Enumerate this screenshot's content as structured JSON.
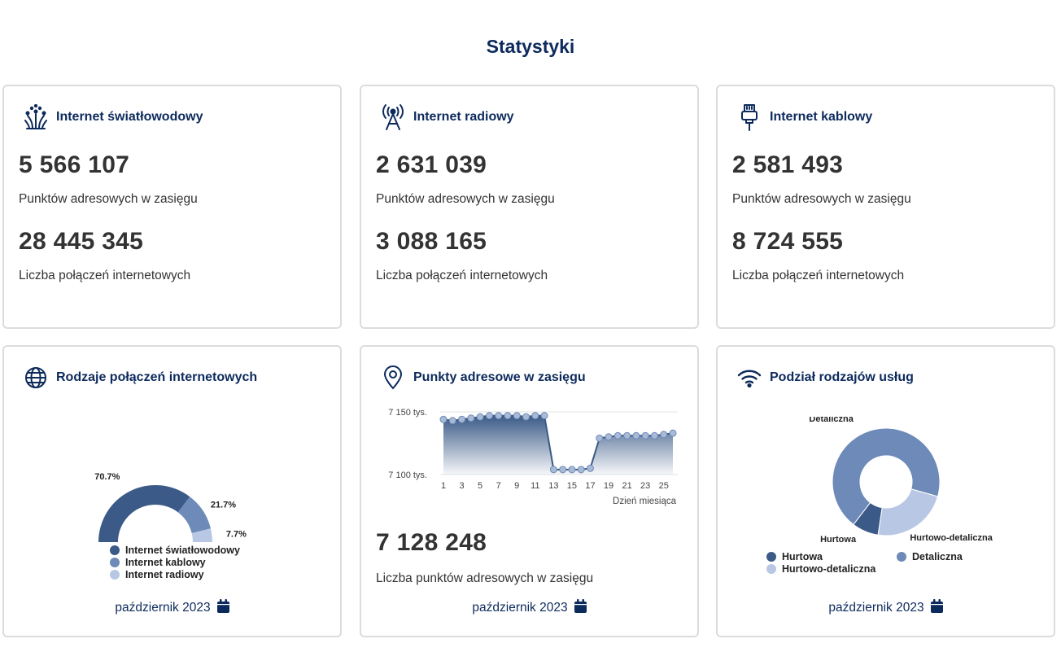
{
  "page_title": "Statystyki",
  "colors": {
    "accent": "#0d2a5c",
    "dark_series": "#3b5a87",
    "mid_series": "#6d8ab8",
    "light_series": "#b8c8e4"
  },
  "cards": {
    "fiber": {
      "icon": "fiber-optic-icon",
      "title": "Internet światłowodowy",
      "address_points": "5 566 107",
      "address_points_label": "Punktów adresowych w zasięgu",
      "connections": "28 445 345",
      "connections_label": "Liczba połączeń internetowych"
    },
    "radio": {
      "icon": "radio-tower-icon",
      "title": "Internet radiowy",
      "address_points": "2 631 039",
      "address_points_label": "Punktów adresowych w zasięgu",
      "connections": "3 088 165",
      "connections_label": "Liczba połączeń internetowych"
    },
    "cable": {
      "icon": "ethernet-cable-icon",
      "title": "Internet kablowy",
      "address_points": "2 581 493",
      "address_points_label": "Punktów adresowych w zasięgu",
      "connections": "8 724 555",
      "connections_label": "Liczba połączeń internetowych"
    },
    "connection_types": {
      "icon": "globe-icon",
      "title": "Rodzaje połączeń internetowych",
      "date": "październik 2023"
    },
    "address_points": {
      "icon": "map-pin-icon",
      "title": "Punkty adresowe w zasięgu",
      "total": "7 128 248",
      "total_label": "Liczba punktów adresowych w zasięgu",
      "date": "październik 2023"
    },
    "service_types": {
      "icon": "wifi-icon",
      "title": "Podział rodzajów usług",
      "date": "październik 2023"
    }
  },
  "chart_data": [
    {
      "type": "pie",
      "variant": "semi-donut",
      "labels": [
        "Internet światłowodowy",
        "Internet kablowy",
        "Internet radiowy"
      ],
      "values": [
        70.7,
        21.7,
        7.7
      ],
      "value_labels": [
        "70.7%",
        "21.7%",
        "7.7%"
      ],
      "colors": [
        "#3b5a87",
        "#6d8ab8",
        "#b8c8e4"
      ],
      "legend": "bottom"
    },
    {
      "type": "area",
      "x": [
        1,
        2,
        3,
        4,
        5,
        6,
        7,
        8,
        9,
        10,
        11,
        12,
        13,
        14,
        15,
        16,
        17,
        18,
        19,
        20,
        21,
        22,
        23,
        24,
        25,
        26
      ],
      "y": [
        7144,
        7143,
        7144,
        7145,
        7146,
        7147,
        7147,
        7147,
        7147,
        7146,
        7147,
        7147,
        7104,
        7104,
        7104,
        7104,
        7105,
        7129,
        7130,
        7131,
        7131,
        7131,
        7131,
        7131,
        7132,
        7133
      ],
      "x_ticks": [
        "1",
        "3",
        "5",
        "7",
        "9",
        "11",
        "13",
        "15",
        "17",
        "19",
        "21",
        "23",
        "25"
      ],
      "y_ticks": [
        "7 150 tys.",
        "7 100 tys."
      ],
      "y_tick_values": [
        7150,
        7100
      ],
      "ylim": [
        7100,
        7150
      ],
      "xlabel": "Dzień miesiąca",
      "grid": true
    },
    {
      "type": "pie",
      "variant": "donut",
      "labels": [
        "Hurtowa",
        "Detaliczna",
        "Hurtowo-detaliczna"
      ],
      "values": [
        8,
        69,
        23
      ],
      "colors": [
        "#3b5a87",
        "#6d8ab8",
        "#b8c8e4"
      ],
      "legend": "bottom"
    }
  ]
}
